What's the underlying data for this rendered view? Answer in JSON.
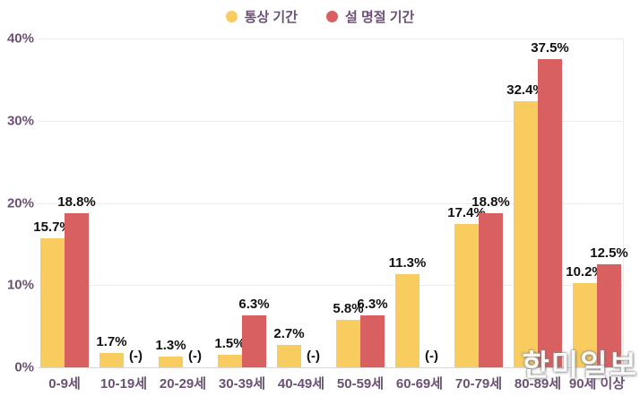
{
  "chart_data": {
    "type": "bar",
    "title": "",
    "categories": [
      "0-9세",
      "10-19세",
      "20-29세",
      "30-39세",
      "40-49세",
      "50-59세",
      "60-69세",
      "70-79세",
      "80-89세",
      "90세 이상"
    ],
    "series": [
      {
        "name": "통상 기간",
        "color": "#F9CC5F",
        "values": [
          15.7,
          1.7,
          1.3,
          1.5,
          2.7,
          5.8,
          11.3,
          17.4,
          32.4,
          10.2
        ],
        "labels": [
          "15.7%",
          "1.7%",
          "1.3%",
          "1.5%",
          "2.7%",
          "5.8%",
          "11.3%",
          "17.4%",
          "32.4%",
          "10.2%"
        ]
      },
      {
        "name": "설 명절 기간",
        "color": "#D96060",
        "values": [
          18.8,
          null,
          null,
          6.3,
          null,
          6.3,
          null,
          18.8,
          37.5,
          12.5
        ],
        "labels": [
          "18.8%",
          "(-)",
          "(-)",
          "6.3%",
          "(-)",
          "6.3%",
          "(-)",
          "18.8%",
          "37.5%",
          "12.5%"
        ]
      }
    ],
    "ylim": [
      0,
      40
    ],
    "yticks": [
      {
        "value": 0,
        "label": "0%"
      },
      {
        "value": 10,
        "label": "10%"
      },
      {
        "value": 20,
        "label": "20%"
      },
      {
        "value": 30,
        "label": "30%"
      },
      {
        "value": 40,
        "label": "40%"
      }
    ],
    "grid": "horizontal",
    "legend_position": "top-center"
  },
  "watermark": "한미일보",
  "colors": {
    "axis_text": "#6B5175",
    "value_text": "#111111",
    "gridline": "#ECECEC",
    "baseline": "#D9D9D9",
    "background": "#FFFFFF"
  }
}
